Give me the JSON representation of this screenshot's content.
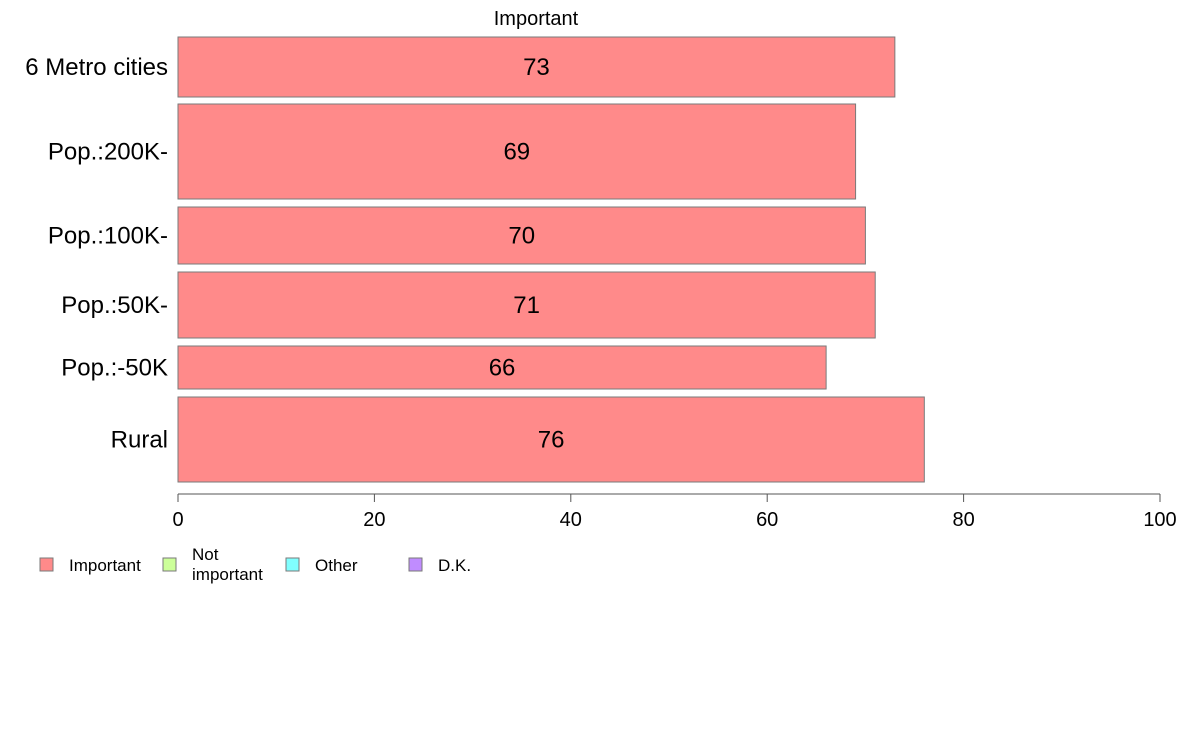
{
  "chart_data": {
    "type": "bar",
    "orientation": "horizontal",
    "stacked": true,
    "panel_title": "Important",
    "categories": [
      "6 Metro cities",
      "Pop.:200K-",
      "Pop.:100K-",
      "Pop.:50K-",
      "Pop.:-50K",
      "Rural"
    ],
    "series": [
      {
        "name": "Important",
        "values": [
          73,
          69,
          70,
          71,
          66,
          76
        ],
        "color": "#ff8a8a"
      }
    ],
    "xlim": [
      0,
      100
    ],
    "xticks": [
      0,
      20,
      40,
      60,
      80,
      100
    ],
    "legend": {
      "position": "bottom-left",
      "items": [
        {
          "label": "Important",
          "color": "#ff8a8a"
        },
        {
          "label": "Not important",
          "color": "#ccff99"
        },
        {
          "label": "Other",
          "color": "#80ffff"
        },
        {
          "label": "D.K.",
          "color": "#c08cff"
        }
      ]
    }
  }
}
